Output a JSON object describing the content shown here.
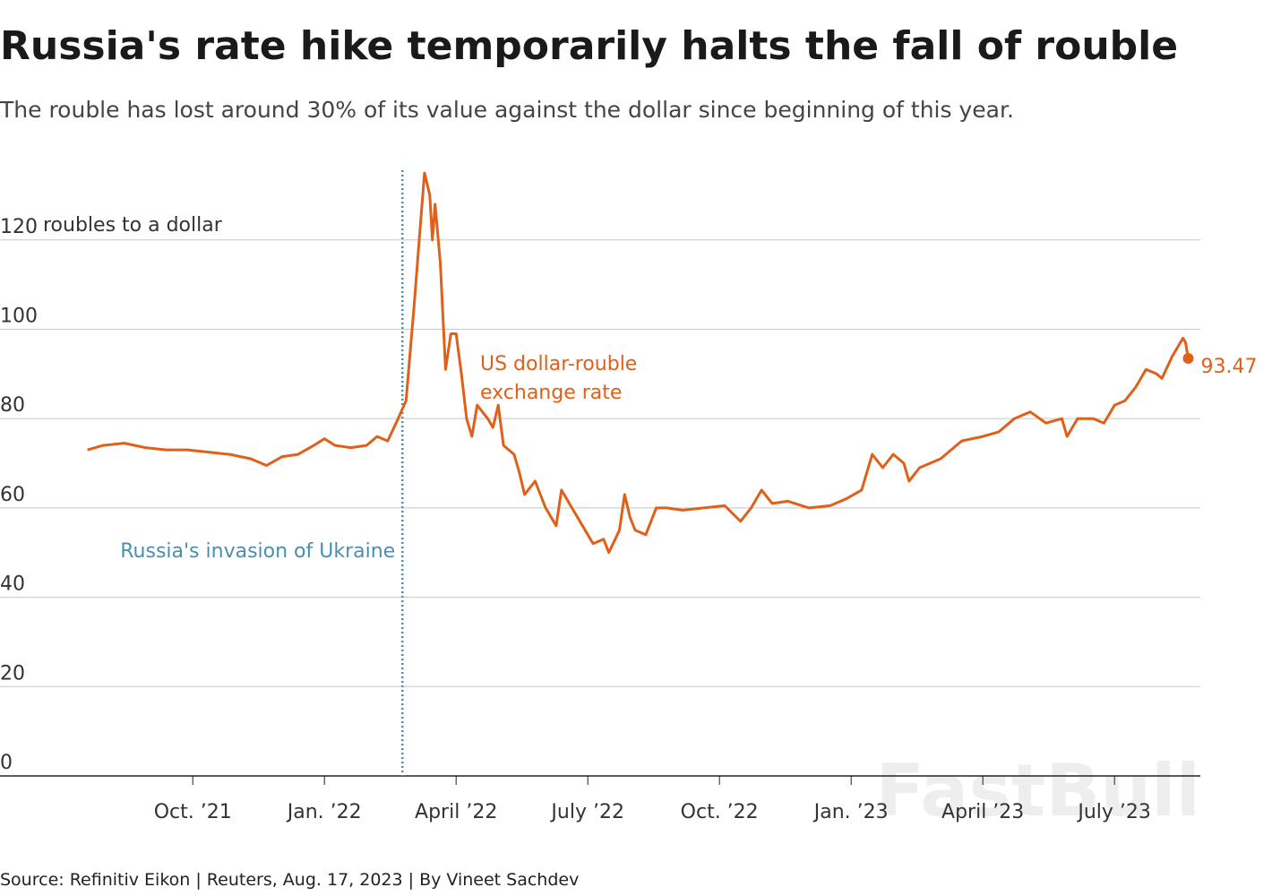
{
  "chart_data": {
    "type": "line",
    "title": "Russia's rate hike temporarily halts the fall of rouble",
    "subtitle": "The rouble has lost around 30% of its value against the dollar since beginning of this year.",
    "y_label": "roubles to a dollar",
    "source": "Source: Refinitiv Eikon | Reuters, Aug. 17, 2023 | By Vineet Sachdev",
    "watermark": "FastBull",
    "xlim": [
      2021.384,
      2023.663
    ],
    "ylim": [
      0,
      136
    ],
    "yticks": [
      0,
      20,
      40,
      60,
      80,
      100,
      120
    ],
    "xticks": [
      {
        "value": 2021.75,
        "label": "Oct. ’21"
      },
      {
        "value": 2022.0,
        "label": "Jan. ’22"
      },
      {
        "value": 2022.25,
        "label": "April ’22"
      },
      {
        "value": 2022.5,
        "label": "July ’22"
      },
      {
        "value": 2022.75,
        "label": "Oct. ’22"
      },
      {
        "value": 2023.0,
        "label": "Jan. ’23"
      },
      {
        "value": 2023.25,
        "label": "April ’23"
      },
      {
        "value": 2023.5,
        "label": "July ’23"
      }
    ],
    "grid": true,
    "annotations": [
      {
        "text": "Russia's invasion of Ukraine",
        "x": 2022.148,
        "color": "#4a8fb0"
      },
      {
        "text": "US dollar-rouble",
        "color": "#e0601a"
      },
      {
        "text": "exchange rate",
        "color": "#e0601a"
      },
      {
        "text": "93.47",
        "color": "#e0601a"
      }
    ],
    "x": [
      2021.55,
      2021.58,
      2021.62,
      2021.66,
      2021.7,
      2021.74,
      2021.78,
      2021.82,
      2021.86,
      2021.89,
      2021.92,
      2021.95,
      2021.98,
      2022.0,
      2022.02,
      2022.05,
      2022.08,
      2022.1,
      2022.12,
      2022.14,
      2022.155,
      2022.165,
      2022.17,
      2022.18,
      2022.19,
      2022.2,
      2022.205,
      2022.21,
      2022.22,
      2022.23,
      2022.24,
      2022.25,
      2022.26,
      2022.27,
      2022.28,
      2022.29,
      2022.31,
      2022.32,
      2022.33,
      2022.34,
      2022.36,
      2022.37,
      2022.38,
      2022.4,
      2022.42,
      2022.44,
      2022.45,
      2022.47,
      2022.49,
      2022.51,
      2022.53,
      2022.54,
      2022.56,
      2022.57,
      2022.58,
      2022.59,
      2022.61,
      2022.63,
      2022.65,
      2022.68,
      2022.72,
      2022.76,
      2022.79,
      2022.81,
      2022.83,
      2022.85,
      2022.88,
      2022.92,
      2022.96,
      2022.99,
      2023.02,
      2023.04,
      2023.06,
      2023.08,
      2023.1,
      2023.11,
      2023.13,
      2023.17,
      2023.21,
      2023.25,
      2023.28,
      2023.31,
      2023.34,
      2023.37,
      2023.4,
      2023.41,
      2023.43,
      2023.46,
      2023.48,
      2023.5,
      2023.52,
      2023.54,
      2023.56,
      2023.58,
      2023.59,
      2023.61,
      2023.63,
      2023.635,
      2023.64
    ],
    "series": [
      {
        "name": "US dollar-rouble exchange rate",
        "color": "#e0601a",
        "values": [
          73,
          74,
          74.5,
          73.5,
          73,
          73,
          72.5,
          72,
          71,
          69.5,
          71.5,
          72,
          74,
          75.5,
          74,
          73.5,
          74,
          76,
          75,
          80,
          84,
          98,
          105,
          120,
          135,
          130,
          120,
          128,
          115,
          91,
          99,
          99,
          90,
          80,
          76,
          83,
          80,
          78,
          83,
          74,
          72,
          68,
          63,
          66,
          60,
          56,
          64,
          60,
          56,
          52,
          53,
          50,
          55,
          63,
          58,
          55,
          54,
          60,
          60,
          59.5,
          60,
          60.5,
          57,
          60,
          64,
          61,
          61.5,
          60,
          60.5,
          62,
          64,
          72,
          69,
          72,
          70,
          66,
          69,
          71,
          75,
          76,
          77,
          80,
          81.5,
          79,
          80,
          76,
          80,
          80,
          79,
          83,
          84,
          87,
          91,
          90,
          89,
          94,
          98,
          97,
          93.47
        ]
      }
    ]
  }
}
